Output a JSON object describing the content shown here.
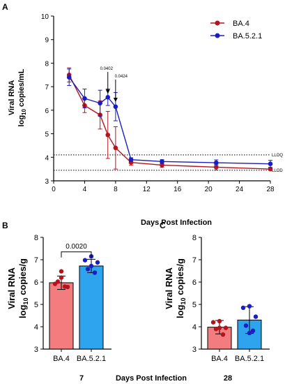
{
  "figure": {
    "panels": [
      "A",
      "B",
      "C"
    ],
    "bottom_label": "Days Post Infection",
    "bottom_days": [
      "7",
      "28"
    ]
  },
  "colors": {
    "ba4": "#b5141e",
    "ba521": "#1a1ec0",
    "bar_ba4": "#f37c7e",
    "bar_ba521": "#2fa4ee",
    "dot_ba4": "#b5141e",
    "dot_ba521": "#1a1ec0"
  },
  "chart_data": [
    {
      "type": "line",
      "panel": "A",
      "ylabel_line1": "Viral RNA",
      "ylabel_line2": "log",
      "ylabel_sub": "10",
      "ylabel_line2_rest": " copies/mL",
      "xlabel": "Days Post Infection",
      "xlim": [
        0,
        28
      ],
      "ylim": [
        3,
        10
      ],
      "xticks": [
        0,
        4,
        8,
        12,
        16,
        20,
        24,
        28
      ],
      "yticks": [
        3,
        4,
        5,
        6,
        7,
        8,
        9,
        10
      ],
      "legend_position": "top-right",
      "series": [
        {
          "name": "BA.4",
          "x": [
            2,
            4,
            6,
            7,
            8,
            10,
            14,
            21,
            28
          ],
          "y": [
            7.5,
            6.2,
            5.8,
            4.95,
            4.4,
            3.78,
            3.67,
            3.58,
            3.5
          ],
          "err": [
            0.3,
            0.3,
            0.6,
            1.0,
            0.9,
            0.12,
            0.1,
            0.12,
            0.05
          ]
        },
        {
          "name": "BA.5.2.1",
          "x": [
            2,
            4,
            6,
            7,
            8,
            10,
            14,
            21,
            28
          ],
          "y": [
            7.4,
            6.5,
            6.3,
            6.55,
            6.15,
            3.9,
            3.82,
            3.77,
            3.72
          ],
          "err": [
            0.35,
            0.4,
            0.55,
            0.35,
            0.6,
            0.08,
            0.08,
            0.12,
            0.15
          ]
        }
      ],
      "reference_lines": [
        {
          "label": "LLOQ",
          "y": 4.1
        },
        {
          "label": "LLOD",
          "y": 3.45
        }
      ],
      "annotations": [
        {
          "text": "0.0402",
          "x": 7,
          "arrow_to_y": 6.7
        },
        {
          "text": "0.0424",
          "x": 8,
          "arrow_to_y": 6.35
        }
      ]
    },
    {
      "type": "bar",
      "panel": "B",
      "ylabel_line1": "Viral RNA",
      "ylabel_line2": "log",
      "ylabel_sub": "10",
      "ylabel_line2_rest": " copies/g",
      "categories": [
        "BA.4",
        "BA.5.2.1"
      ],
      "values": [
        5.97,
        6.72
      ],
      "err": [
        0.3,
        0.3
      ],
      "points": [
        [
          6.48,
          5.92,
          5.78,
          6.02,
          5.8,
          6.2
        ],
        [
          7.15,
          6.98,
          6.88,
          6.58,
          6.42,
          6.72
        ]
      ],
      "ylim": [
        3,
        8
      ],
      "yticks": [
        3,
        4,
        5,
        6,
        7,
        8
      ],
      "xgroup": "7",
      "bracket": {
        "text": "0.0020"
      }
    },
    {
      "type": "bar",
      "panel": "C",
      "ylabel_line1": "Viral RNA",
      "ylabel_line2": "log",
      "ylabel_sub": "10",
      "ylabel_line2_rest": " copies/g",
      "categories": [
        "BA.4",
        "BA.5.2.1"
      ],
      "values": [
        3.98,
        4.3
      ],
      "err": [
        0.3,
        0.6
      ],
      "points": [
        [
          4.25,
          4.2,
          3.95,
          3.9,
          3.65,
          3.95
        ],
        [
          4.92,
          4.85,
          4.45,
          4.05,
          3.82,
          3.72
        ]
      ],
      "ylim": [
        3,
        8
      ],
      "yticks": [
        3,
        4,
        5,
        6,
        7,
        8
      ],
      "xgroup": "28"
    }
  ]
}
